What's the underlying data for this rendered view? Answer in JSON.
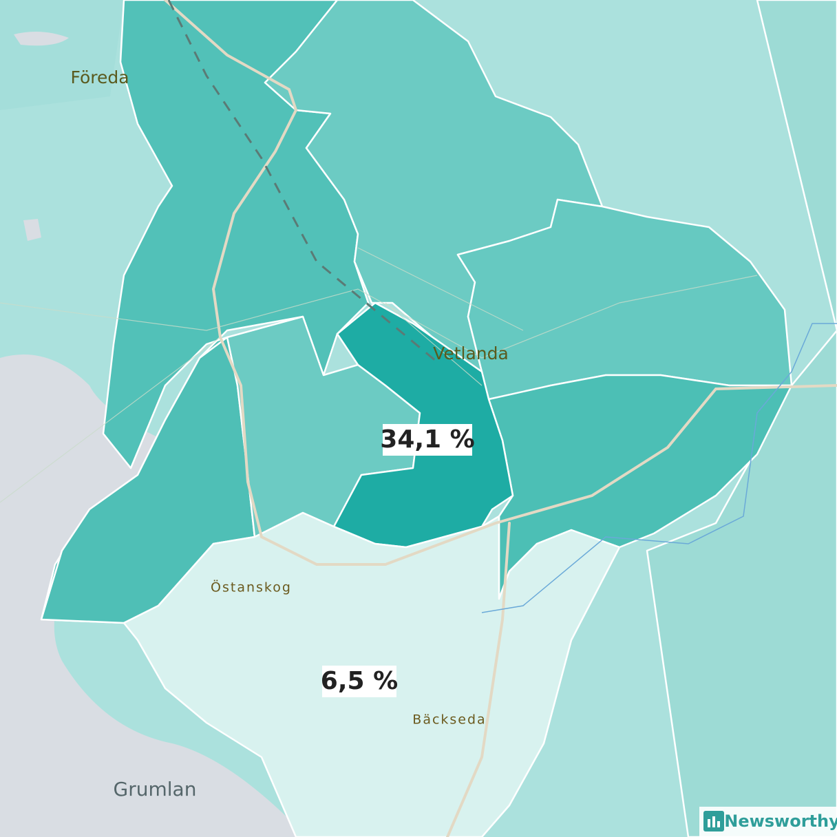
{
  "places": [
    "Föreda",
    "Vetlanda",
    "Östanskog",
    "Bäckseda",
    "Grumlan"
  ],
  "regions": [
    {
      "label": "34,1 %"
    },
    {
      "label": "6,5 %"
    }
  ],
  "brand": "Newsworthy"
}
